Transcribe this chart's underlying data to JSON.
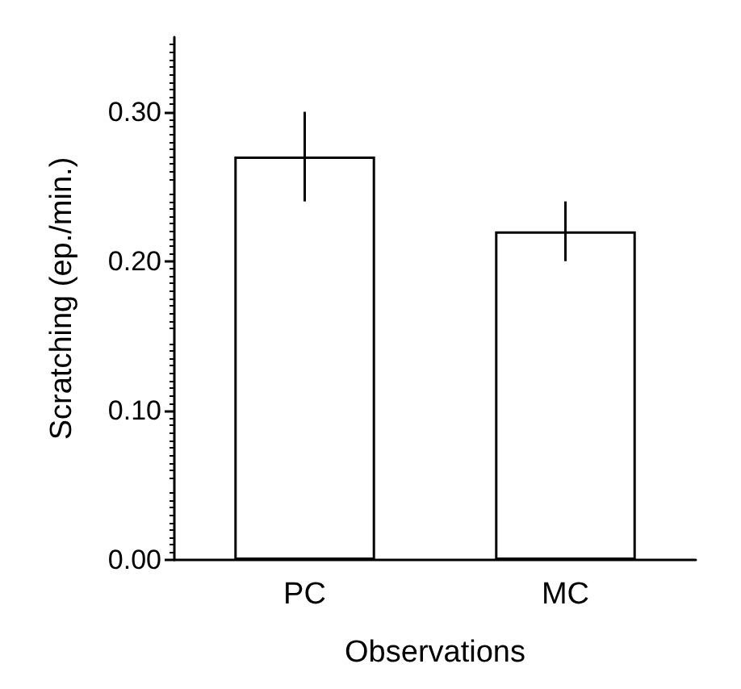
{
  "chart_data": {
    "type": "bar",
    "xlabel": "Observations",
    "ylabel": "Scratching (ep./min.)",
    "categories": [
      "PC",
      "MC"
    ],
    "values": [
      0.27,
      0.22
    ],
    "errors": [
      0.03,
      0.02
    ],
    "color": "#ffffff",
    "ylim": [
      0,
      0.35
    ],
    "yticks": [
      {
        "value": 0,
        "label": "0.00"
      },
      {
        "value": 0.1,
        "label": "0.10"
      },
      {
        "value": 0.2,
        "label": "0.20"
      },
      {
        "value": 0.3,
        "label": "0.30"
      }
    ],
    "grid": false
  }
}
